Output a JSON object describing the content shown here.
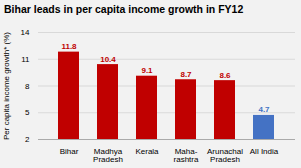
{
  "chart_data": {
    "type": "bar",
    "title": "Bihar leads in per capita income growth in FY12",
    "ylabel": "Per capita income growth* (%)",
    "categories": [
      "Bihar",
      "Madhya\nPradesh",
      "Kerala",
      "Maha-\nrashtra",
      "Arunachal\nPradesh",
      "All India"
    ],
    "values": [
      11.8,
      10.4,
      9.1,
      8.7,
      8.6,
      4.7
    ],
    "colors": [
      "#c00000",
      "#c00000",
      "#c00000",
      "#c00000",
      "#c00000",
      "#4472c4"
    ],
    "ylim": [
      2,
      14
    ],
    "yticks": [
      2,
      5,
      8,
      11,
      14
    ],
    "grid": true,
    "data_labels": true
  }
}
